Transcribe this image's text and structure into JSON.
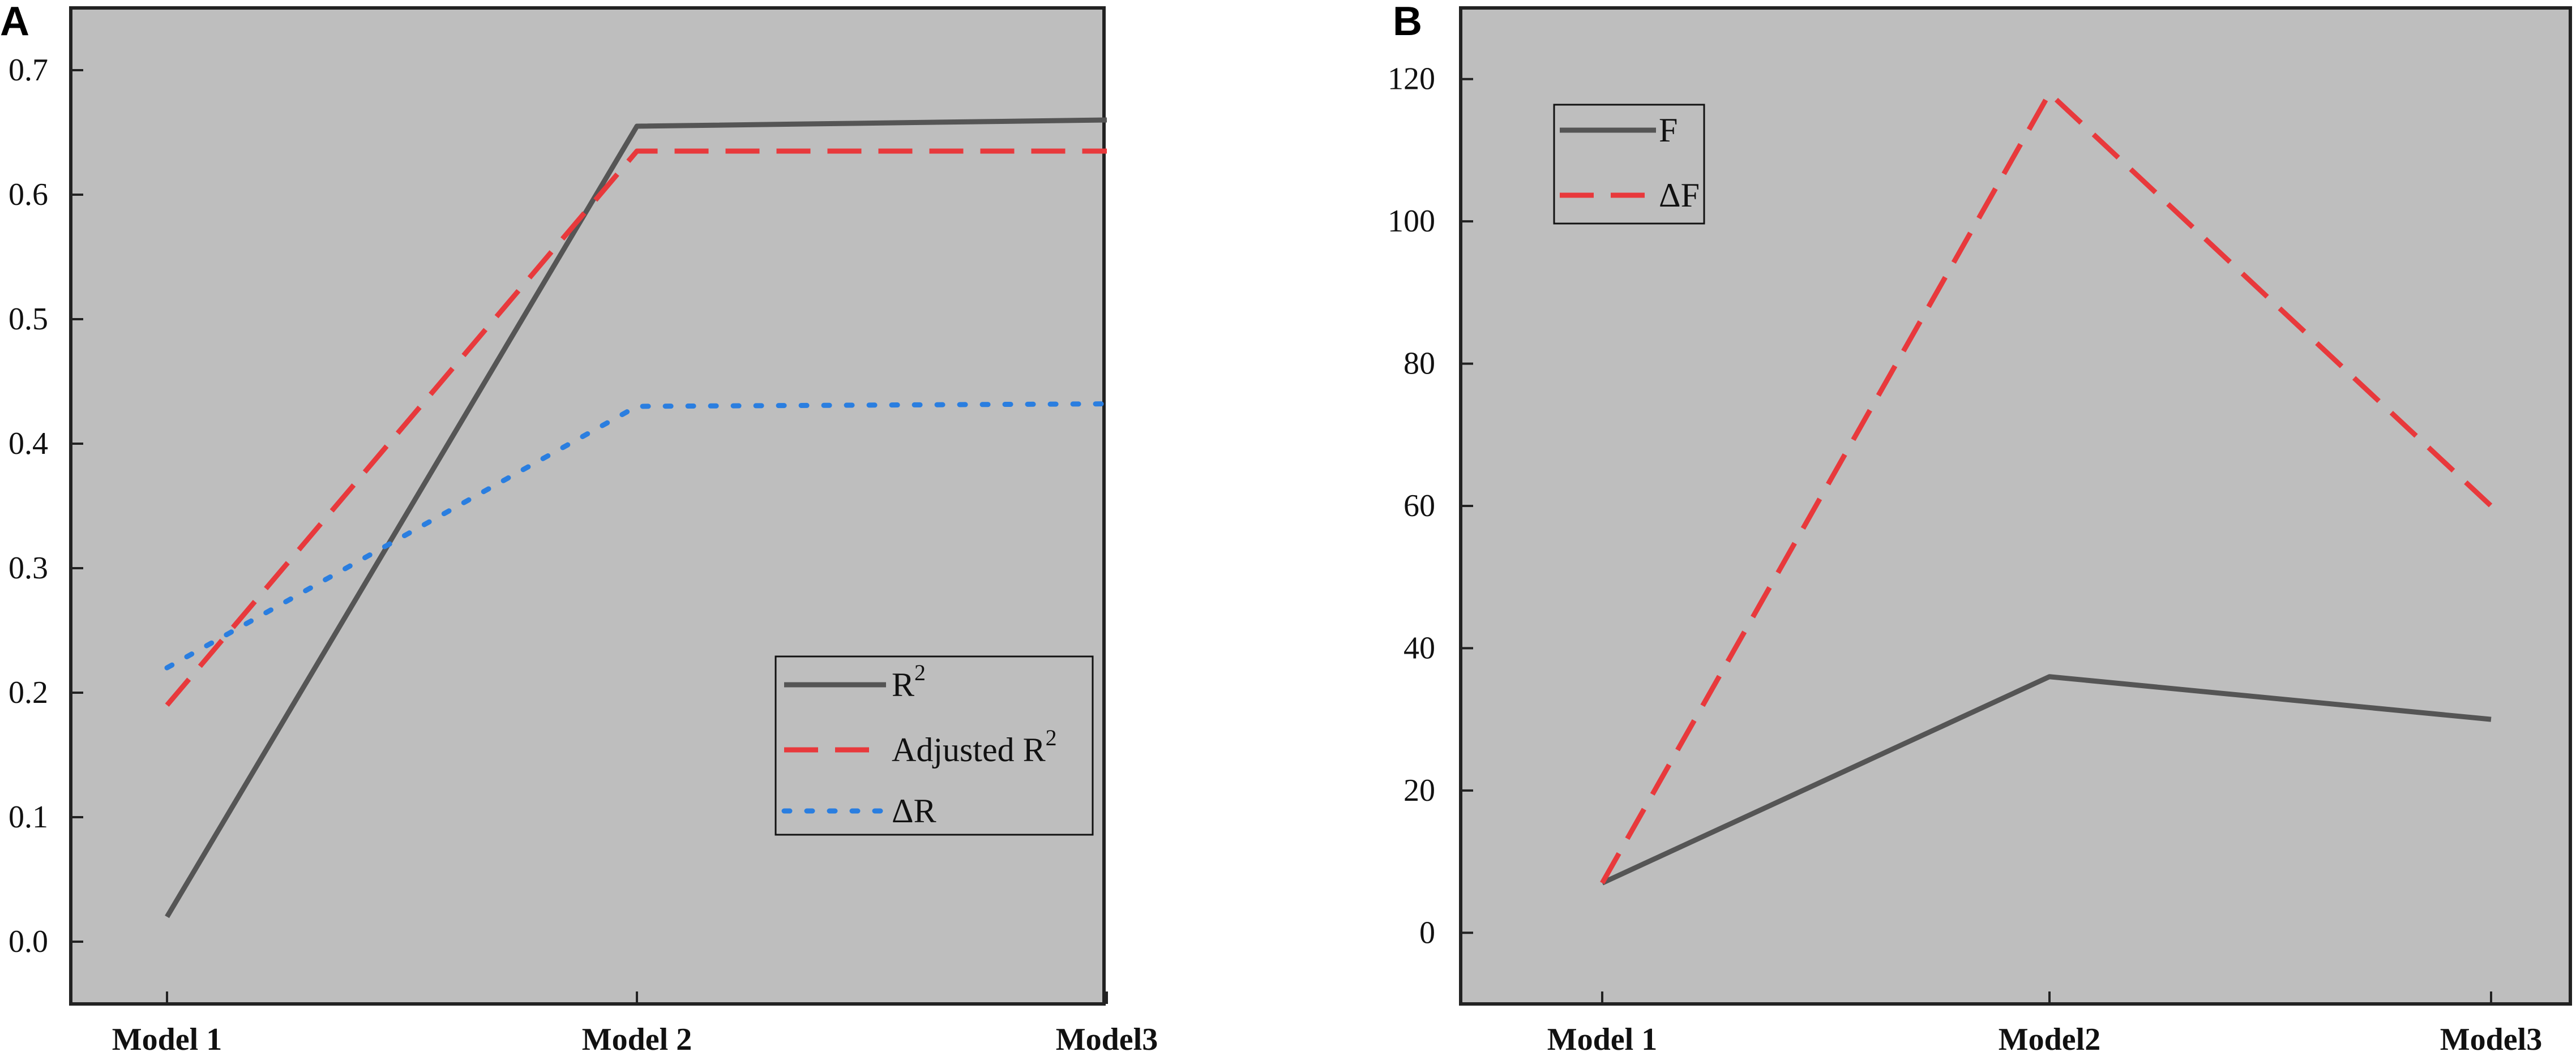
{
  "chart_data": [
    {
      "panel": "A",
      "type": "line",
      "categories": [
        "Model 1",
        "Model 2",
        "Model3"
      ],
      "ylim": [
        -0.05,
        0.75
      ],
      "yticks": [
        "0.0",
        "0.1",
        "0.2",
        "0.3",
        "0.4",
        "0.5",
        "0.6",
        "0.7"
      ],
      "ytick_values": [
        0.0,
        0.1,
        0.2,
        0.3,
        0.4,
        0.5,
        0.6,
        0.7
      ],
      "grid": false,
      "legend_position": "lower-right",
      "series": [
        {
          "name": "R",
          "name_sup": "2",
          "values": [
            0.02,
            0.655,
            0.66
          ],
          "color": "#555555",
          "style": "solid"
        },
        {
          "name": "Adjusted R",
          "name_sup": "2",
          "values": [
            0.19,
            0.635,
            0.635
          ],
          "color": "#e8393c",
          "style": "dashed"
        },
        {
          "name": "ΔR",
          "name_sup": "",
          "values": [
            0.22,
            0.43,
            0.432
          ],
          "color": "#2a7ee0",
          "style": "dotted"
        }
      ]
    },
    {
      "panel": "B",
      "type": "line",
      "categories": [
        "Model 1",
        "Model2",
        "Model3"
      ],
      "ylim": [
        -10,
        130
      ],
      "yticks": [
        "0",
        "20",
        "40",
        "60",
        "80",
        "100",
        "120"
      ],
      "ytick_values": [
        0,
        20,
        40,
        60,
        80,
        100,
        120
      ],
      "grid": false,
      "legend_position": "top-left",
      "series": [
        {
          "name": "F",
          "name_sup": "",
          "values": [
            7,
            36,
            30
          ],
          "color": "#555555",
          "style": "solid"
        },
        {
          "name": "ΔF",
          "name_sup": "",
          "values": [
            7,
            118,
            60
          ],
          "color": "#e8393c",
          "style": "dashed"
        }
      ]
    }
  ]
}
